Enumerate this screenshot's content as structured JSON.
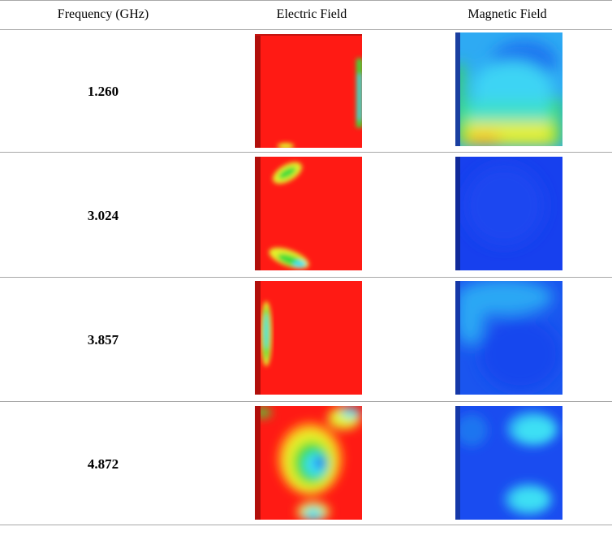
{
  "table": {
    "headers": {
      "frequency": "Frequency (GHz)",
      "electric": "Electric Field",
      "magnetic": "Magnetic Field"
    },
    "rows": [
      {
        "frequency": "1.260",
        "electric_icon": "electric-field-heatmap",
        "magnetic_icon": "magnetic-field-heatmap"
      },
      {
        "frequency": "3.024",
        "electric_icon": "electric-field-heatmap",
        "magnetic_icon": "magnetic-field-heatmap"
      },
      {
        "frequency": "3.857",
        "electric_icon": "electric-field-heatmap",
        "magnetic_icon": "magnetic-field-heatmap"
      },
      {
        "frequency": "4.872",
        "electric_icon": "electric-field-heatmap",
        "magnetic_icon": "magnetic-field-heatmap"
      }
    ]
  },
  "colors": {
    "rule": "#a8a8a8",
    "field_red": "#ff1a14",
    "field_blue": "#1740ee",
    "field_cyan": "#3ee0f4",
    "field_green": "#3ddc3a",
    "field_yellow": "#e6f02a"
  }
}
